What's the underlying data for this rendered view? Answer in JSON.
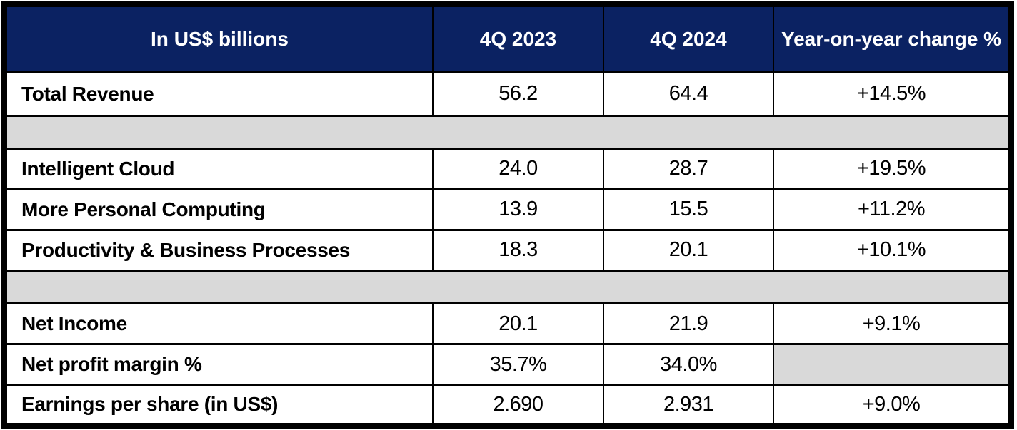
{
  "table": {
    "headers": {
      "metric": "In US$ billions",
      "q4_2023": "4Q 2023",
      "q4_2024": "4Q 2024",
      "yoy": "Year-on-year change %"
    },
    "rows": [
      {
        "label": "Total Revenue",
        "q4_2023": "56.2",
        "q4_2024": "64.4",
        "yoy": "+14.5%"
      },
      {
        "label": "Intelligent Cloud",
        "q4_2023": "24.0",
        "q4_2024": "28.7",
        "yoy": "+19.5%"
      },
      {
        "label": "More Personal Computing",
        "q4_2023": "13.9",
        "q4_2024": "15.5",
        "yoy": "+11.2%"
      },
      {
        "label": "Productivity & Business Processes",
        "q4_2023": "18.3",
        "q4_2024": "20.1",
        "yoy": "+10.1%"
      },
      {
        "label": "Net Income",
        "q4_2023": "20.1",
        "q4_2024": "21.9",
        "yoy": "+9.1%"
      },
      {
        "label": "Net profit margin %",
        "q4_2023": "35.7%",
        "q4_2024": "34.0%",
        "yoy": ""
      },
      {
        "label": "Earnings per share (in US$)",
        "q4_2023": "2.690",
        "q4_2024": "2.931",
        "yoy": "+9.0%"
      }
    ]
  },
  "colors": {
    "header_background": "#0b2262",
    "header_text": "#ffffff",
    "spacer_background": "#d9d9d9",
    "border": "#000000",
    "body_text": "#000000",
    "row_background": "#ffffff"
  },
  "chart_data": {
    "type": "table",
    "title": "In US$ billions",
    "columns": [
      "In US$ billions",
      "4Q 2023",
      "4Q 2024",
      "Year-on-year change %"
    ],
    "rows": [
      [
        "Total Revenue",
        56.2,
        64.4,
        "+14.5%"
      ],
      [
        "Intelligent Cloud",
        24.0,
        28.7,
        "+19.5%"
      ],
      [
        "More Personal Computing",
        13.9,
        15.5,
        "+11.2%"
      ],
      [
        "Productivity & Business Processes",
        18.3,
        20.1,
        "+10.1%"
      ],
      [
        "Net Income",
        20.1,
        21.9,
        "+9.1%"
      ],
      [
        "Net profit margin %",
        "35.7%",
        "34.0%",
        null
      ],
      [
        "Earnings per share (in US$)",
        2.69,
        2.931,
        "+9.0%"
      ]
    ],
    "layout": {
      "header_style": "dark-navy, white bold, centered",
      "spacer_rows_after": [
        "Total Revenue",
        "Productivity & Business Processes"
      ],
      "empty_cells": [
        [
          "Net profit margin %",
          "Year-on-year change %"
        ]
      ]
    }
  }
}
